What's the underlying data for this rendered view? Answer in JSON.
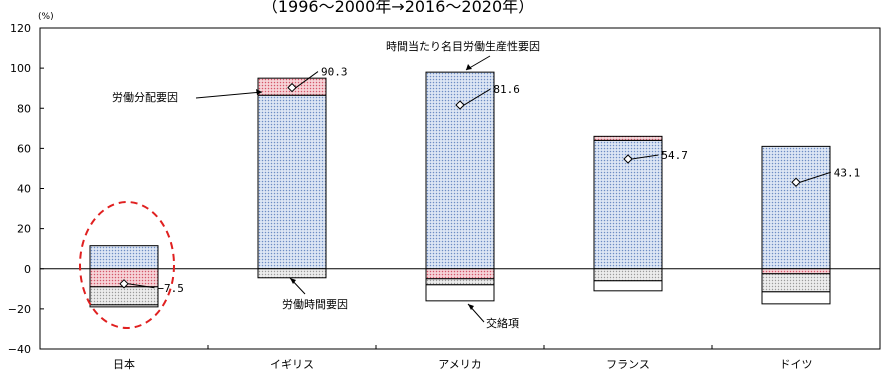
{
  "chart_data": {
    "type": "bar",
    "stacked": true,
    "subtitle": "（1996〜2000年→2016〜2020年）",
    "y_unit": "(%)",
    "ylim": [
      -40,
      120
    ],
    "yticks": [
      -40,
      -20,
      0,
      20,
      40,
      60,
      80,
      100,
      120
    ],
    "ytick_labels": [
      "−40",
      "−20",
      "0",
      "20",
      "40",
      "60",
      "80",
      "100",
      "120"
    ],
    "categories": [
      "日本",
      "イギリス",
      "アメリカ",
      "フランス",
      "ドイツ"
    ],
    "series": [
      {
        "name": "時間当たり名目労働生産性要因",
        "pattern": "dots-blue",
        "values": [
          11.5,
          86.5,
          98,
          64,
          61
        ]
      },
      {
        "name": "労働分配要因",
        "pattern": "dots-red",
        "values": [
          -9,
          8.5,
          -5,
          2,
          -2.5
        ]
      },
      {
        "name": "労働時間要因",
        "pattern": "dots-gray",
        "values": [
          -9,
          -4.5,
          -3,
          -6,
          -9
        ]
      },
      {
        "name": "交絡項",
        "pattern": "none",
        "values": [
          -1,
          0,
          -8,
          -5,
          -6
        ]
      }
    ],
    "totals": [
      -7.5,
      90.3,
      81.6,
      54.7,
      43.1
    ],
    "total_labels": [
      "−7.5",
      "90.3",
      "81.6",
      "54.7",
      "43.1"
    ],
    "highlight": "日本",
    "grid": false,
    "legend": "callout-annotations"
  }
}
